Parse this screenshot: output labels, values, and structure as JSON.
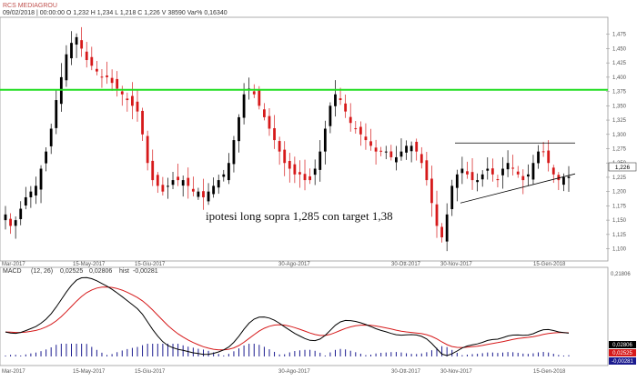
{
  "header": {
    "symbol": "RCS MEDIAGROU",
    "quote": "09/02/2018 | 00:00:00 O 1,232 H 1,234 L 1,218 C 1,226 V 38590 Var% 0,16340"
  },
  "price_panel": {
    "last_price_label": "1,226",
    "annotation": "ipotesi long sopra 1,285 con target 1,38"
  },
  "macd_panel": {
    "legend_name": "MACD",
    "legend_params": "(12, 26)",
    "legend_values": [
      "0,02525",
      "0,02806",
      "-0,00281"
    ],
    "legend_hist_label": "hist"
  },
  "colors": {
    "up_candle": "#000000",
    "down_candle": "#d6191a",
    "resistance": "#22dd22",
    "trendline": "#000000",
    "macd_line": "#000000",
    "signal_line": "#d6191a",
    "histogram": "#1b1b8f",
    "macd_badge_1": "#000000",
    "macd_badge_2": "#d6191a",
    "macd_badge_3": "#1b1b8f"
  },
  "chart_data": [
    {
      "type": "candlestick",
      "symbol": "RCS MEDIAGROU",
      "x_tick_labels": [
        "Mar-2017",
        "15-May-2017",
        "15-Giu-2017",
        "30-Ago-2017",
        "30-Ott-2017",
        "30-Nov-2017",
        "15-Gen-2018"
      ],
      "y_tick_labels": [
        "1,475",
        "1,450",
        "1,425",
        "1,400",
        "1,375",
        "1,350",
        "1,325",
        "1,300",
        "1,275",
        "1,250",
        "1,225",
        "1,200",
        "1,175",
        "1,150",
        "1,125",
        "1,100"
      ],
      "ylim": [
        1.085,
        1.5
      ],
      "last_price": 1.226,
      "horizontal_levels": [
        {
          "value": 1.378,
          "style": "resistance"
        },
        {
          "value": 1.285,
          "style": "triangle-top"
        }
      ],
      "trendline": {
        "from": [
          "30-Nov-2017",
          1.18
        ],
        "to": [
          "09/02/2018",
          1.23
        ]
      },
      "closes": [
        1.16,
        1.14,
        1.15,
        1.17,
        1.19,
        1.2,
        1.21,
        1.24,
        1.27,
        1.31,
        1.36,
        1.4,
        1.44,
        1.46,
        1.47,
        1.45,
        1.43,
        1.42,
        1.41,
        1.4,
        1.4,
        1.39,
        1.38,
        1.37,
        1.36,
        1.35,
        1.34,
        1.3,
        1.25,
        1.22,
        1.21,
        1.2,
        1.21,
        1.22,
        1.22,
        1.22,
        1.21,
        1.2,
        1.2,
        1.19,
        1.2,
        1.21,
        1.22,
        1.23,
        1.25,
        1.29,
        1.33,
        1.37,
        1.38,
        1.37,
        1.35,
        1.33,
        1.31,
        1.29,
        1.27,
        1.25,
        1.24,
        1.23,
        1.23,
        1.22,
        1.22,
        1.24,
        1.27,
        1.31,
        1.35,
        1.37,
        1.36,
        1.34,
        1.32,
        1.31,
        1.3,
        1.29,
        1.28,
        1.27,
        1.27,
        1.27,
        1.26,
        1.26,
        1.27,
        1.28,
        1.28,
        1.27,
        1.25,
        1.22,
        1.18,
        1.14,
        1.12,
        1.16,
        1.21,
        1.23,
        1.24,
        1.23,
        1.22,
        1.22,
        1.23,
        1.24,
        1.23,
        1.22,
        1.24,
        1.25,
        1.24,
        1.23,
        1.22,
        1.23,
        1.25,
        1.27,
        1.27,
        1.25,
        1.23,
        1.22,
        1.225,
        1.226
      ]
    },
    {
      "type": "line",
      "name": "MACD",
      "params": "(12, 26)",
      "last_values": {
        "macd": 0.02525,
        "signal": 0.02806,
        "hist": -0.00281
      },
      "y_tick_labels": [
        "0,21806"
      ],
      "x_tick_labels": [
        "Mar-2017",
        "15-May-2017",
        "15-Giu-2017",
        "30-Ago-2017",
        "30-Ott-2017",
        "30-Nov-2017",
        "15-Gen-2018"
      ]
    }
  ]
}
